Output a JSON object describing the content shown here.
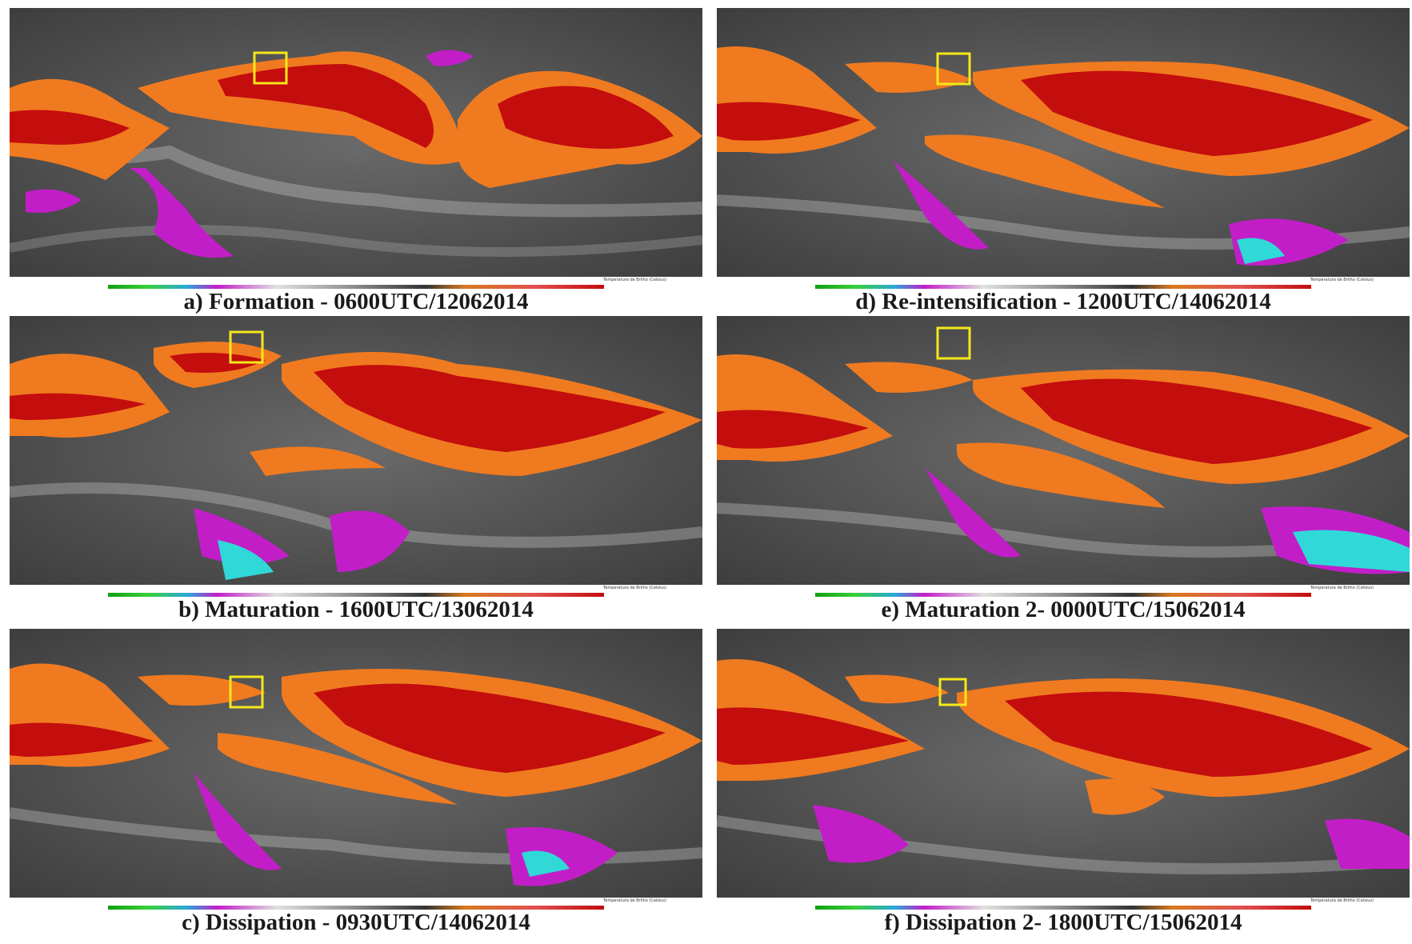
{
  "colors": {
    "background_gray": "#5a5a5a",
    "cloud_orange": "#f07a20",
    "cloud_red": "#c40d0d",
    "cold_magenta": "#c21ec8",
    "cold_cyan": "#30d8d8",
    "box_yellow": "#f4e81a"
  },
  "scale": {
    "title": "Temperatura de Brilho (Celsius)",
    "ticks": [
      "-59",
      "-51",
      "-43",
      "-39.5",
      "-30",
      "-22.5",
      "-25",
      "-18.5",
      "-22",
      "-18.5",
      "-14",
      "-10.5"
    ],
    "gradient": [
      "#11a011",
      "#38d038",
      "#2aa8d8",
      "#c21ec8",
      "#d8d8d8",
      "#8a8a8a",
      "#3a3a3a",
      "#d87a20",
      "#e05050",
      "#c40d0d"
    ]
  },
  "panels": [
    {
      "id": "a",
      "caption": "a) Formation - 0600UTC/12062014"
    },
    {
      "id": "b",
      "caption": "b) Maturation - 1600UTC/13062014"
    },
    {
      "id": "c",
      "caption": "c) Dissipation - 0930UTC/14062014"
    },
    {
      "id": "d",
      "caption": "d) Re-intensification - 1200UTC/14062014"
    },
    {
      "id": "e",
      "caption": "e) Maturation 2- 0000UTC/15062014"
    },
    {
      "id": "f",
      "caption": "f) Dissipation 2- 1800UTC/15062014"
    }
  ]
}
